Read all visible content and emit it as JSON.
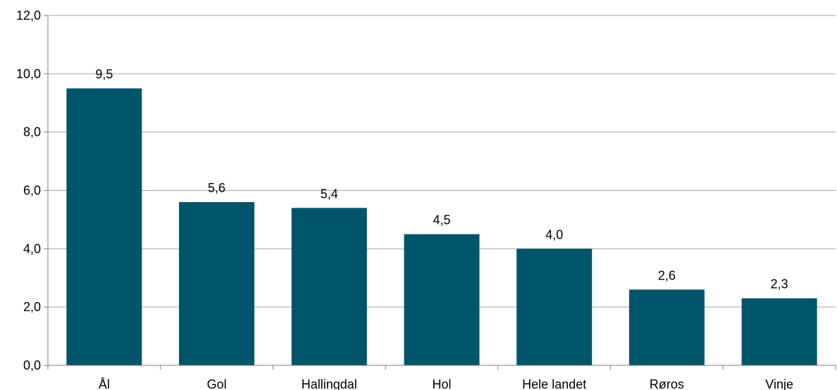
{
  "chart_data": {
    "type": "bar",
    "categories": [
      "Ål",
      "Gol",
      "Hallingdal",
      "Hol",
      "Hele landet",
      "Røros",
      "Vinje"
    ],
    "values": [
      9.5,
      5.6,
      5.4,
      4.5,
      4.0,
      2.6,
      2.3
    ],
    "value_labels": [
      "9,5",
      "5,6",
      "5,4",
      "4,5",
      "4,0",
      "2,6",
      "2,3"
    ],
    "ylim": [
      0,
      12
    ],
    "yticks": [
      0,
      2,
      4,
      6,
      8,
      10,
      12
    ],
    "ytick_labels": [
      "0,0",
      "2,0",
      "4,0",
      "6,0",
      "8,0",
      "10,0",
      "12,0"
    ],
    "grid": true,
    "bar_color": "#00556b",
    "grid_color": "#a6a6a6",
    "axis_color": "#7f7f7f"
  }
}
